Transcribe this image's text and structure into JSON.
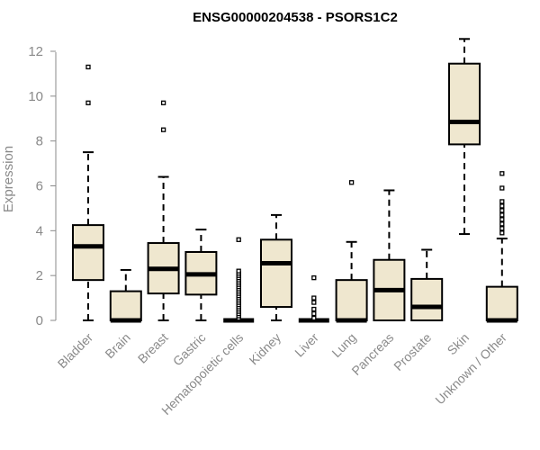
{
  "chart_data": {
    "type": "box",
    "title": "ENSG00000204538 - PSORS1C2",
    "ylabel": "Expression",
    "xlabel": "",
    "ylim": [
      0,
      12.6
    ],
    "yticks": [
      0,
      2,
      4,
      6,
      8,
      10,
      12
    ],
    "grid": false,
    "box_fill": "#efe7cf",
    "box_stroke": "#000000",
    "categories": [
      "Bladder",
      "Brain",
      "Breast",
      "Gastric",
      "Hematopoietic cells",
      "Kidney",
      "Liver",
      "Lung",
      "Pancreas",
      "Prostate",
      "Skin",
      "Unknown / Other"
    ],
    "boxes": [
      {
        "category": "Bladder",
        "whisker_low": 0,
        "q1": 1.8,
        "median": 3.3,
        "q3": 4.25,
        "whisker_high": 7.5,
        "outliers": [
          9.7,
          11.3
        ]
      },
      {
        "category": "Brain",
        "whisker_low": 0,
        "q1": 0,
        "median": 0,
        "q3": 1.3,
        "whisker_high": 2.25,
        "outliers": []
      },
      {
        "category": "Breast",
        "whisker_low": 0,
        "q1": 1.2,
        "median": 2.3,
        "q3": 3.45,
        "whisker_high": 6.4,
        "outliers": [
          8.5,
          9.7
        ]
      },
      {
        "category": "Gastric",
        "whisker_low": 0,
        "q1": 1.15,
        "median": 2.05,
        "q3": 3.05,
        "whisker_high": 4.05,
        "outliers": []
      },
      {
        "category": "Hematopoietic cells",
        "whisker_low": 0,
        "q1": 0,
        "median": 0,
        "q3": 0,
        "whisker_high": 0,
        "outliers": [
          0.1,
          0.2,
          0.3,
          0.4,
          0.5,
          0.6,
          0.7,
          0.8,
          0.9,
          1.0,
          1.1,
          1.2,
          1.3,
          1.4,
          1.5,
          1.6,
          1.7,
          1.8,
          1.9,
          2.0,
          2.1,
          2.2,
          3.6
        ]
      },
      {
        "category": "Kidney",
        "whisker_low": 0,
        "q1": 0.6,
        "median": 2.55,
        "q3": 3.6,
        "whisker_high": 4.7,
        "outliers": []
      },
      {
        "category": "Liver",
        "whisker_low": 0,
        "q1": 0,
        "median": 0,
        "q3": 0,
        "whisker_high": 0,
        "outliers": [
          0.1,
          0.3,
          0.5,
          0.8,
          1.0,
          1.9
        ]
      },
      {
        "category": "Lung",
        "whisker_low": 0,
        "q1": 0,
        "median": 0,
        "q3": 1.8,
        "whisker_high": 3.5,
        "outliers": [
          6.15
        ]
      },
      {
        "category": "Pancreas",
        "whisker_low": 0,
        "q1": 0,
        "median": 1.35,
        "q3": 2.7,
        "whisker_high": 5.8,
        "outliers": []
      },
      {
        "category": "Prostate",
        "whisker_low": 0,
        "q1": 0,
        "median": 0.6,
        "q3": 1.85,
        "whisker_high": 3.15,
        "outliers": []
      },
      {
        "category": "Skin",
        "whisker_low": 3.85,
        "q1": 7.85,
        "median": 8.85,
        "q3": 11.45,
        "whisker_high": 12.55,
        "outliers": []
      },
      {
        "category": "Unknown / Other",
        "whisker_low": 0,
        "q1": 0,
        "median": 0,
        "q3": 1.5,
        "whisker_high": 3.65,
        "outliers": [
          3.9,
          4.1,
          4.3,
          4.5,
          4.7,
          4.9,
          5.1,
          5.3,
          5.9,
          6.55
        ]
      }
    ]
  }
}
